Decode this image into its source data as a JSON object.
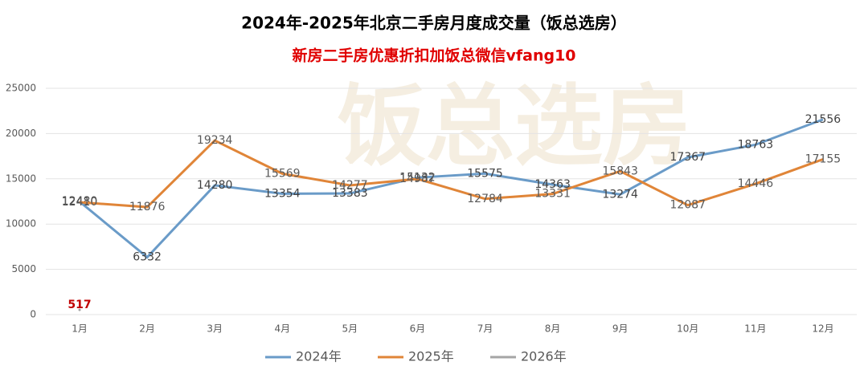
{
  "chart_data": {
    "type": "line",
    "title": "2024年-2025年北京二手房月度成交量（饭总选房）",
    "subtitle": "新房二手房优惠折扣加饭总微信vfang10",
    "watermark": "饭总选房",
    "categories": [
      "1月",
      "2月",
      "3月",
      "4月",
      "5月",
      "6月",
      "7月",
      "8月",
      "9月",
      "10月",
      "11月",
      "12月"
    ],
    "series": [
      {
        "name": "2024年",
        "color": "#6a9bc8",
        "label_color": "#404040",
        "values": [
          12480,
          6332,
          14280,
          13354,
          13383,
          15132,
          15575,
          14363,
          13274,
          17367,
          18763,
          21556
        ]
      },
      {
        "name": "2025年",
        "color": "#e08538",
        "label_color": "#595959",
        "values": [
          12410,
          11876,
          19234,
          15569,
          14277,
          14987,
          12784,
          13331,
          15843,
          12087,
          14446,
          17155
        ]
      },
      {
        "name": "2026年",
        "color": "#a5a5a5",
        "label_color": "#c00000",
        "values": [
          517,
          null,
          null,
          null,
          null,
          null,
          null,
          null,
          null,
          null,
          null,
          null
        ]
      }
    ],
    "ylim": [
      0,
      25000
    ],
    "yticks": [
      0,
      5000,
      10000,
      15000,
      20000,
      25000
    ],
    "grid": true,
    "legend": "bottom"
  }
}
